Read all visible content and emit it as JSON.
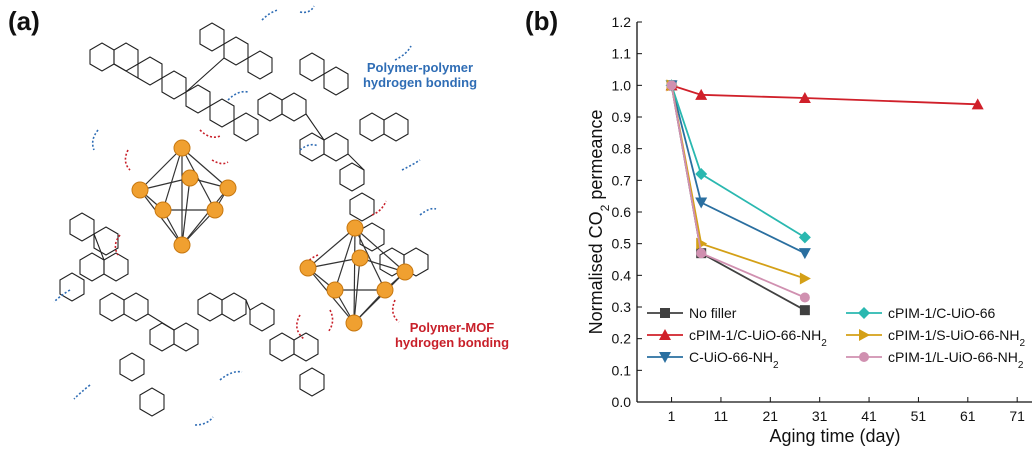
{
  "panels": {
    "a": {
      "label": "(a)",
      "annotation_polymer": [
        "Polymer-polymer",
        "hydrogen bonding"
      ],
      "annotation_mof": [
        "Polymer-MOF",
        "hydrogen bonding"
      ],
      "colors": {
        "polymer": "#2f6db5",
        "mof": "#c8202a",
        "node": "#f0a030"
      }
    },
    "b": {
      "label": "(b)"
    }
  },
  "chart_data": {
    "type": "line",
    "xlabel": "Aging time (day)",
    "ylabel_parts": [
      "Normalised CO",
      "2",
      " permeance"
    ],
    "xlim": [
      -6,
      74
    ],
    "ylim": [
      0.0,
      1.2
    ],
    "xticks": [
      1,
      11,
      21,
      31,
      41,
      51,
      61,
      71
    ],
    "yticks": [
      0.0,
      0.1,
      0.2,
      0.3,
      0.4,
      0.5,
      0.6,
      0.7,
      0.8,
      0.9,
      1.0,
      1.1,
      1.2
    ],
    "legend_position": "bottom",
    "series": [
      {
        "name": "No filler",
        "color": "#404040",
        "marker": "square",
        "x": [
          1,
          7,
          28
        ],
        "y": [
          1.0,
          0.47,
          0.29
        ]
      },
      {
        "name": "cPIM-1/C-UiO-66-NH",
        "name_sub": "2",
        "color": "#d0202a",
        "marker": "triangle-up",
        "x": [
          1,
          7,
          28,
          63
        ],
        "y": [
          1.0,
          0.97,
          0.96,
          0.94
        ]
      },
      {
        "name": "C-UiO-66-NH",
        "name_sub": "2",
        "color": "#2a6fa0",
        "marker": "triangle-down",
        "x": [
          1,
          7,
          28
        ],
        "y": [
          1.0,
          0.63,
          0.47
        ]
      },
      {
        "name": "cPIM-1/C-UiO-66",
        "color": "#2ab8b0",
        "marker": "diamond",
        "x": [
          1,
          7,
          28
        ],
        "y": [
          1.0,
          0.72,
          0.52
        ]
      },
      {
        "name": "cPIM-1/S-UiO-66-NH",
        "name_sub": "2",
        "color": "#d4a017",
        "marker": "triangle-right",
        "x": [
          1,
          7,
          28
        ],
        "y": [
          1.0,
          0.5,
          0.39
        ]
      },
      {
        "name": "cPIM-1/L-UiO-66-NH",
        "name_sub": "2",
        "color": "#d090b0",
        "marker": "circle",
        "x": [
          1,
          7,
          28
        ],
        "y": [
          1.0,
          0.47,
          0.33
        ]
      }
    ]
  }
}
